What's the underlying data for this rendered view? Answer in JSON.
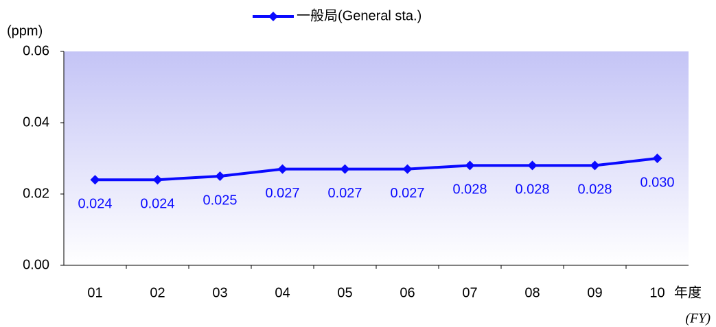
{
  "chart_data": {
    "type": "line",
    "y_label": "(ppm)",
    "x_label": "年度",
    "x_label_sub": "(FY)",
    "categories": [
      "01",
      "02",
      "03",
      "04",
      "05",
      "06",
      "07",
      "08",
      "09",
      "10"
    ],
    "series": [
      {
        "name": "一般局(General sta.)",
        "color": "#0a0aff",
        "values": [
          0.024,
          0.024,
          0.025,
          0.027,
          0.027,
          0.027,
          0.028,
          0.028,
          0.028,
          0.03
        ],
        "value_labels": [
          "0.024",
          "0.024",
          "0.025",
          "0.027",
          "0.027",
          "0.027",
          "0.028",
          "0.028",
          "0.028",
          "0.030"
        ]
      }
    ],
    "ylim": [
      0,
      0.06
    ],
    "yticks": [
      {
        "value": 0,
        "label": "0.00"
      },
      {
        "value": 0.02,
        "label": "0.02"
      },
      {
        "value": 0.04,
        "label": "0.04"
      },
      {
        "value": 0.06,
        "label": "0.06"
      }
    ],
    "legend": "top"
  }
}
